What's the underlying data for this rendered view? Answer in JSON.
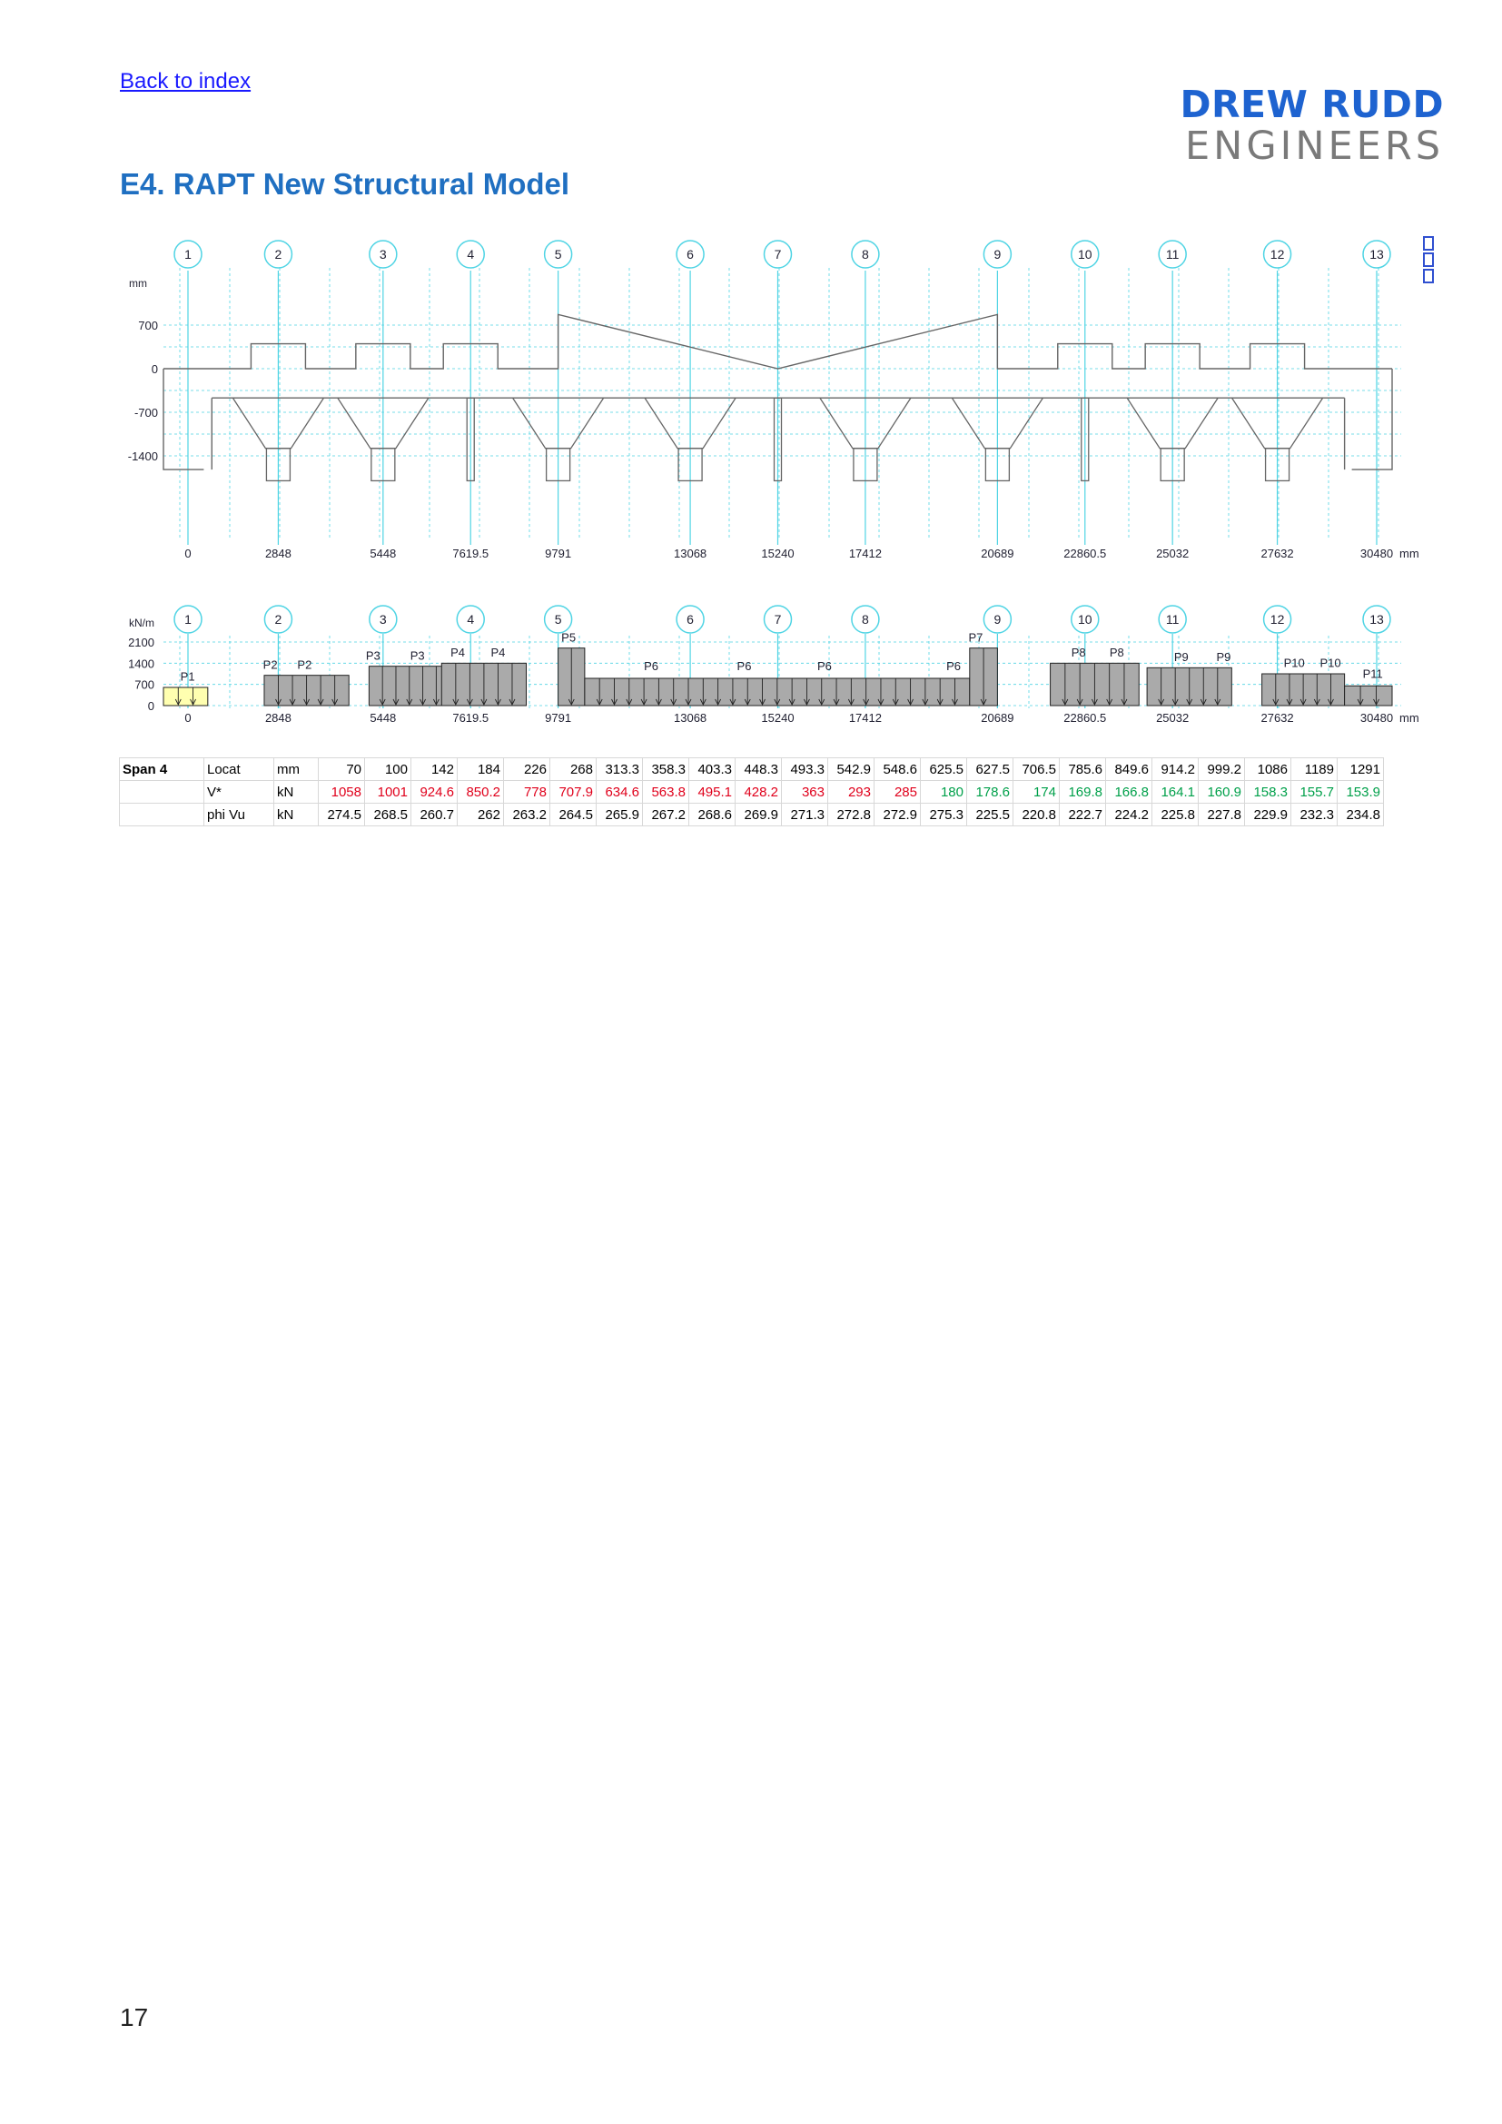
{
  "nav": {
    "back_link": "Back to index"
  },
  "logo": {
    "line1": "DREW RUDD",
    "line2": "ENGINEERS"
  },
  "section_title": "E4. RAPT New Structural Model",
  "chart_data": [
    {
      "type": "other",
      "description_kind": "beam elevation",
      "gridlines": [
        "1",
        "2",
        "3",
        "4",
        "5",
        "6",
        "7",
        "8",
        "9",
        "10",
        "11",
        "12",
        "13"
      ],
      "y_unit": "mm",
      "y_ticks": [
        "700",
        "0",
        "-700",
        "-1400"
      ],
      "x_unit": "mm",
      "x_ticks": [
        "0",
        "2848",
        "5448",
        "7619.5",
        "9791",
        "13068",
        "15240",
        "17412",
        "20689",
        "22860.5",
        "25032",
        "27632",
        "30480"
      ]
    },
    {
      "type": "bar",
      "description_kind": "load diagram",
      "gridlines": [
        "1",
        "2",
        "3",
        "4",
        "5",
        "6",
        "7",
        "8",
        "9",
        "10",
        "11",
        "12",
        "13"
      ],
      "y_unit": "kN/m",
      "y_ticks": [
        "2100",
        "1400",
        "700",
        "0"
      ],
      "x_unit": "mm",
      "x_ticks": [
        "0",
        "2848",
        "5448",
        "7619.5",
        "9791",
        "13068",
        "15240",
        "17412",
        "20689",
        "22860.5",
        "25032",
        "27632",
        "30480"
      ],
      "load_labels": [
        "P1",
        "P2",
        "P2",
        "P3",
        "P3",
        "P4",
        "P4",
        "P5",
        "P6",
        "P6",
        "P6",
        "P6",
        "P7",
        "P8",
        "P8",
        "P9",
        "P9",
        "P10",
        "P10",
        "P11"
      ]
    }
  ],
  "table": {
    "span_label": "Span 4",
    "rows": [
      {
        "label": "Locat",
        "unit": "mm",
        "values": [
          "70",
          "100",
          "142",
          "184",
          "226",
          "268",
          "313.3",
          "358.3",
          "403.3",
          "448.3",
          "493.3",
          "542.9",
          "548.6",
          "625.5",
          "627.5",
          "706.5",
          "785.6",
          "849.6",
          "914.2",
          "999.2",
          "1086",
          "1189",
          "1291"
        ]
      },
      {
        "label": "V*",
        "unit": "kN",
        "values": [
          "1058",
          "1001",
          "924.6",
          "850.2",
          "778",
          "707.9",
          "634.6",
          "563.8",
          "495.1",
          "428.2",
          "363",
          "293",
          "285",
          "180",
          "178.6",
          "174",
          "169.8",
          "166.8",
          "164.1",
          "160.9",
          "158.3",
          "155.7",
          "153.9"
        ]
      },
      {
        "label": "phi Vu",
        "unit": "kN",
        "values": [
          "274.5",
          "268.5",
          "260.7",
          "262",
          "263.2",
          "264.5",
          "265.9",
          "267.2",
          "268.6",
          "269.9",
          "271.3",
          "272.8",
          "272.9",
          "275.3",
          "225.5",
          "220.8",
          "222.7",
          "224.2",
          "225.8",
          "227.8",
          "229.9",
          "232.3",
          "234.8"
        ]
      }
    ],
    "colors": {
      "fail": "#e0001b",
      "pass": "#00a04a"
    }
  },
  "page_number": "17"
}
